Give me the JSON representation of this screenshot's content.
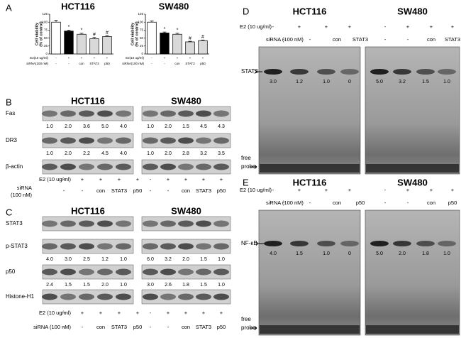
{
  "panel_a": {
    "label": "A",
    "charts": [
      {
        "title": "HCT116",
        "y_label": [
          "Cell viability",
          "(% of control)"
        ],
        "ylim": [
          0,
          125
        ],
        "yticks": [
          0,
          25,
          50,
          75,
          100,
          125
        ],
        "values": [
          100,
          72,
          62,
          48,
          55
        ],
        "errors": [
          6,
          3,
          3,
          4,
          3
        ],
        "colors": [
          "#ffffff",
          "#000000",
          "#d9d9d9",
          "#d9d9d9",
          "#d9d9d9"
        ],
        "significance": [
          null,
          "*",
          "*",
          "#",
          "#"
        ],
        "row_labels": [
          "E2(10 ug/ml)",
          "siRNA(100 nM)"
        ],
        "rows": [
          [
            "-",
            "+",
            "+",
            "+",
            "+"
          ],
          [
            "-",
            "-",
            "con",
            "STAT3",
            "p50"
          ]
        ]
      },
      {
        "title": "SW480",
        "y_label": [
          "Cell viability",
          "(% of control)"
        ],
        "ylim": [
          0,
          125
        ],
        "yticks": [
          0,
          25,
          50,
          75,
          100,
          125
        ],
        "values": [
          100,
          66,
          62,
          38,
          42
        ],
        "errors": [
          4,
          3,
          3,
          2,
          2
        ],
        "colors": [
          "#ffffff",
          "#000000",
          "#d9d9d9",
          "#d9d9d9",
          "#d9d9d9"
        ],
        "significance": [
          null,
          "*",
          "*",
          "#",
          "#"
        ],
        "row_labels": [
          "E2(10 ug/ml)",
          "siRNA(100 nM)"
        ],
        "rows": [
          [
            "-",
            "+",
            "+",
            "+",
            "+"
          ],
          [
            "-",
            "-",
            "con",
            "STAT3",
            "p50"
          ]
        ]
      }
    ]
  },
  "panel_b": {
    "label": "B",
    "headers": [
      "HCT116",
      "SW480"
    ],
    "blots": [
      {
        "name": "Fas",
        "quant": [
          [
            "1.0",
            "2.0",
            "3.6",
            "5.0",
            "4.0"
          ],
          [
            "1.0",
            "2.0",
            "1.5",
            "4.5",
            "4.3"
          ]
        ]
      },
      {
        "name": "DR3",
        "quant": [
          [
            "1.0",
            "2.0",
            "2.2",
            "4.5",
            "4.0"
          ],
          [
            "1.0",
            "2.0",
            "2.8",
            "3.2",
            "3.5"
          ]
        ]
      },
      {
        "name": "β-actin"
      }
    ],
    "e2_label": "E2 (10 ug/ml)",
    "e2": [
      "-",
      "+",
      "+",
      "+",
      "+"
    ],
    "sirna_label": [
      "siRNA",
      "(100 nM)"
    ],
    "sirna": [
      "-",
      "-",
      "con",
      "STAT3",
      "p50"
    ]
  },
  "panel_c": {
    "label": "C",
    "headers": [
      "HCT116",
      "SW480"
    ],
    "blots": [
      {
        "name": "STAT3"
      },
      {
        "name": "p-STAT3",
        "quant": [
          [
            "4.0",
            "3.0",
            "2.5",
            "1.2",
            "1.0"
          ],
          [
            "6.0",
            "3.2",
            "2.0",
            "1.5",
            "1.0"
          ]
        ]
      },
      {
        "name": "p50",
        "quant": [
          [
            "2.4",
            "1.5",
            "1.5",
            "2.0",
            "1.0"
          ],
          [
            "3.0",
            "2.6",
            "1.8",
            "1.5",
            "1.0"
          ]
        ]
      },
      {
        "name": "Histone-H1"
      }
    ],
    "e2_label": "E2 (10 ug/ml)",
    "e2": [
      "-",
      "+",
      "+",
      "+",
      "+"
    ],
    "sirna_label": "siRNA (100 nM)",
    "sirna": [
      "-",
      "-",
      "con",
      "STAT3",
      "p50"
    ]
  },
  "panel_d": {
    "label": "D",
    "headers": [
      "HCT116",
      "SW480"
    ],
    "e2_label": "E2 (10 ug/ml)",
    "e2": [
      "-",
      "+",
      "+",
      "+"
    ],
    "sirna_label": "siRNA (100 nM)",
    "sirna": [
      "-",
      "-",
      "con",
      "STAT3"
    ],
    "band_label": "STAT3",
    "quant": [
      [
        "3.0",
        "1.2",
        "1.0",
        "0"
      ],
      [
        "5.0",
        "3.2",
        "1.5",
        "1.0"
      ]
    ],
    "probe_label": [
      "free",
      "probe"
    ]
  },
  "panel_e": {
    "label": "E",
    "headers": [
      "HCT116",
      "SW480"
    ],
    "e2_label": "E2 (10 ug/ml)",
    "e2": [
      "-",
      "+",
      "+",
      "+"
    ],
    "sirna_label": "siRNA (100 nM)",
    "sirna": [
      "-",
      "-",
      "con",
      "p50"
    ],
    "band_label": "NF-κB",
    "quant": [
      [
        "4.0",
        "1.5",
        "1.0",
        "0"
      ],
      [
        "5.0",
        "2.0",
        "1.8",
        "1.0"
      ]
    ],
    "probe_label": [
      "free",
      "probe"
    ]
  }
}
